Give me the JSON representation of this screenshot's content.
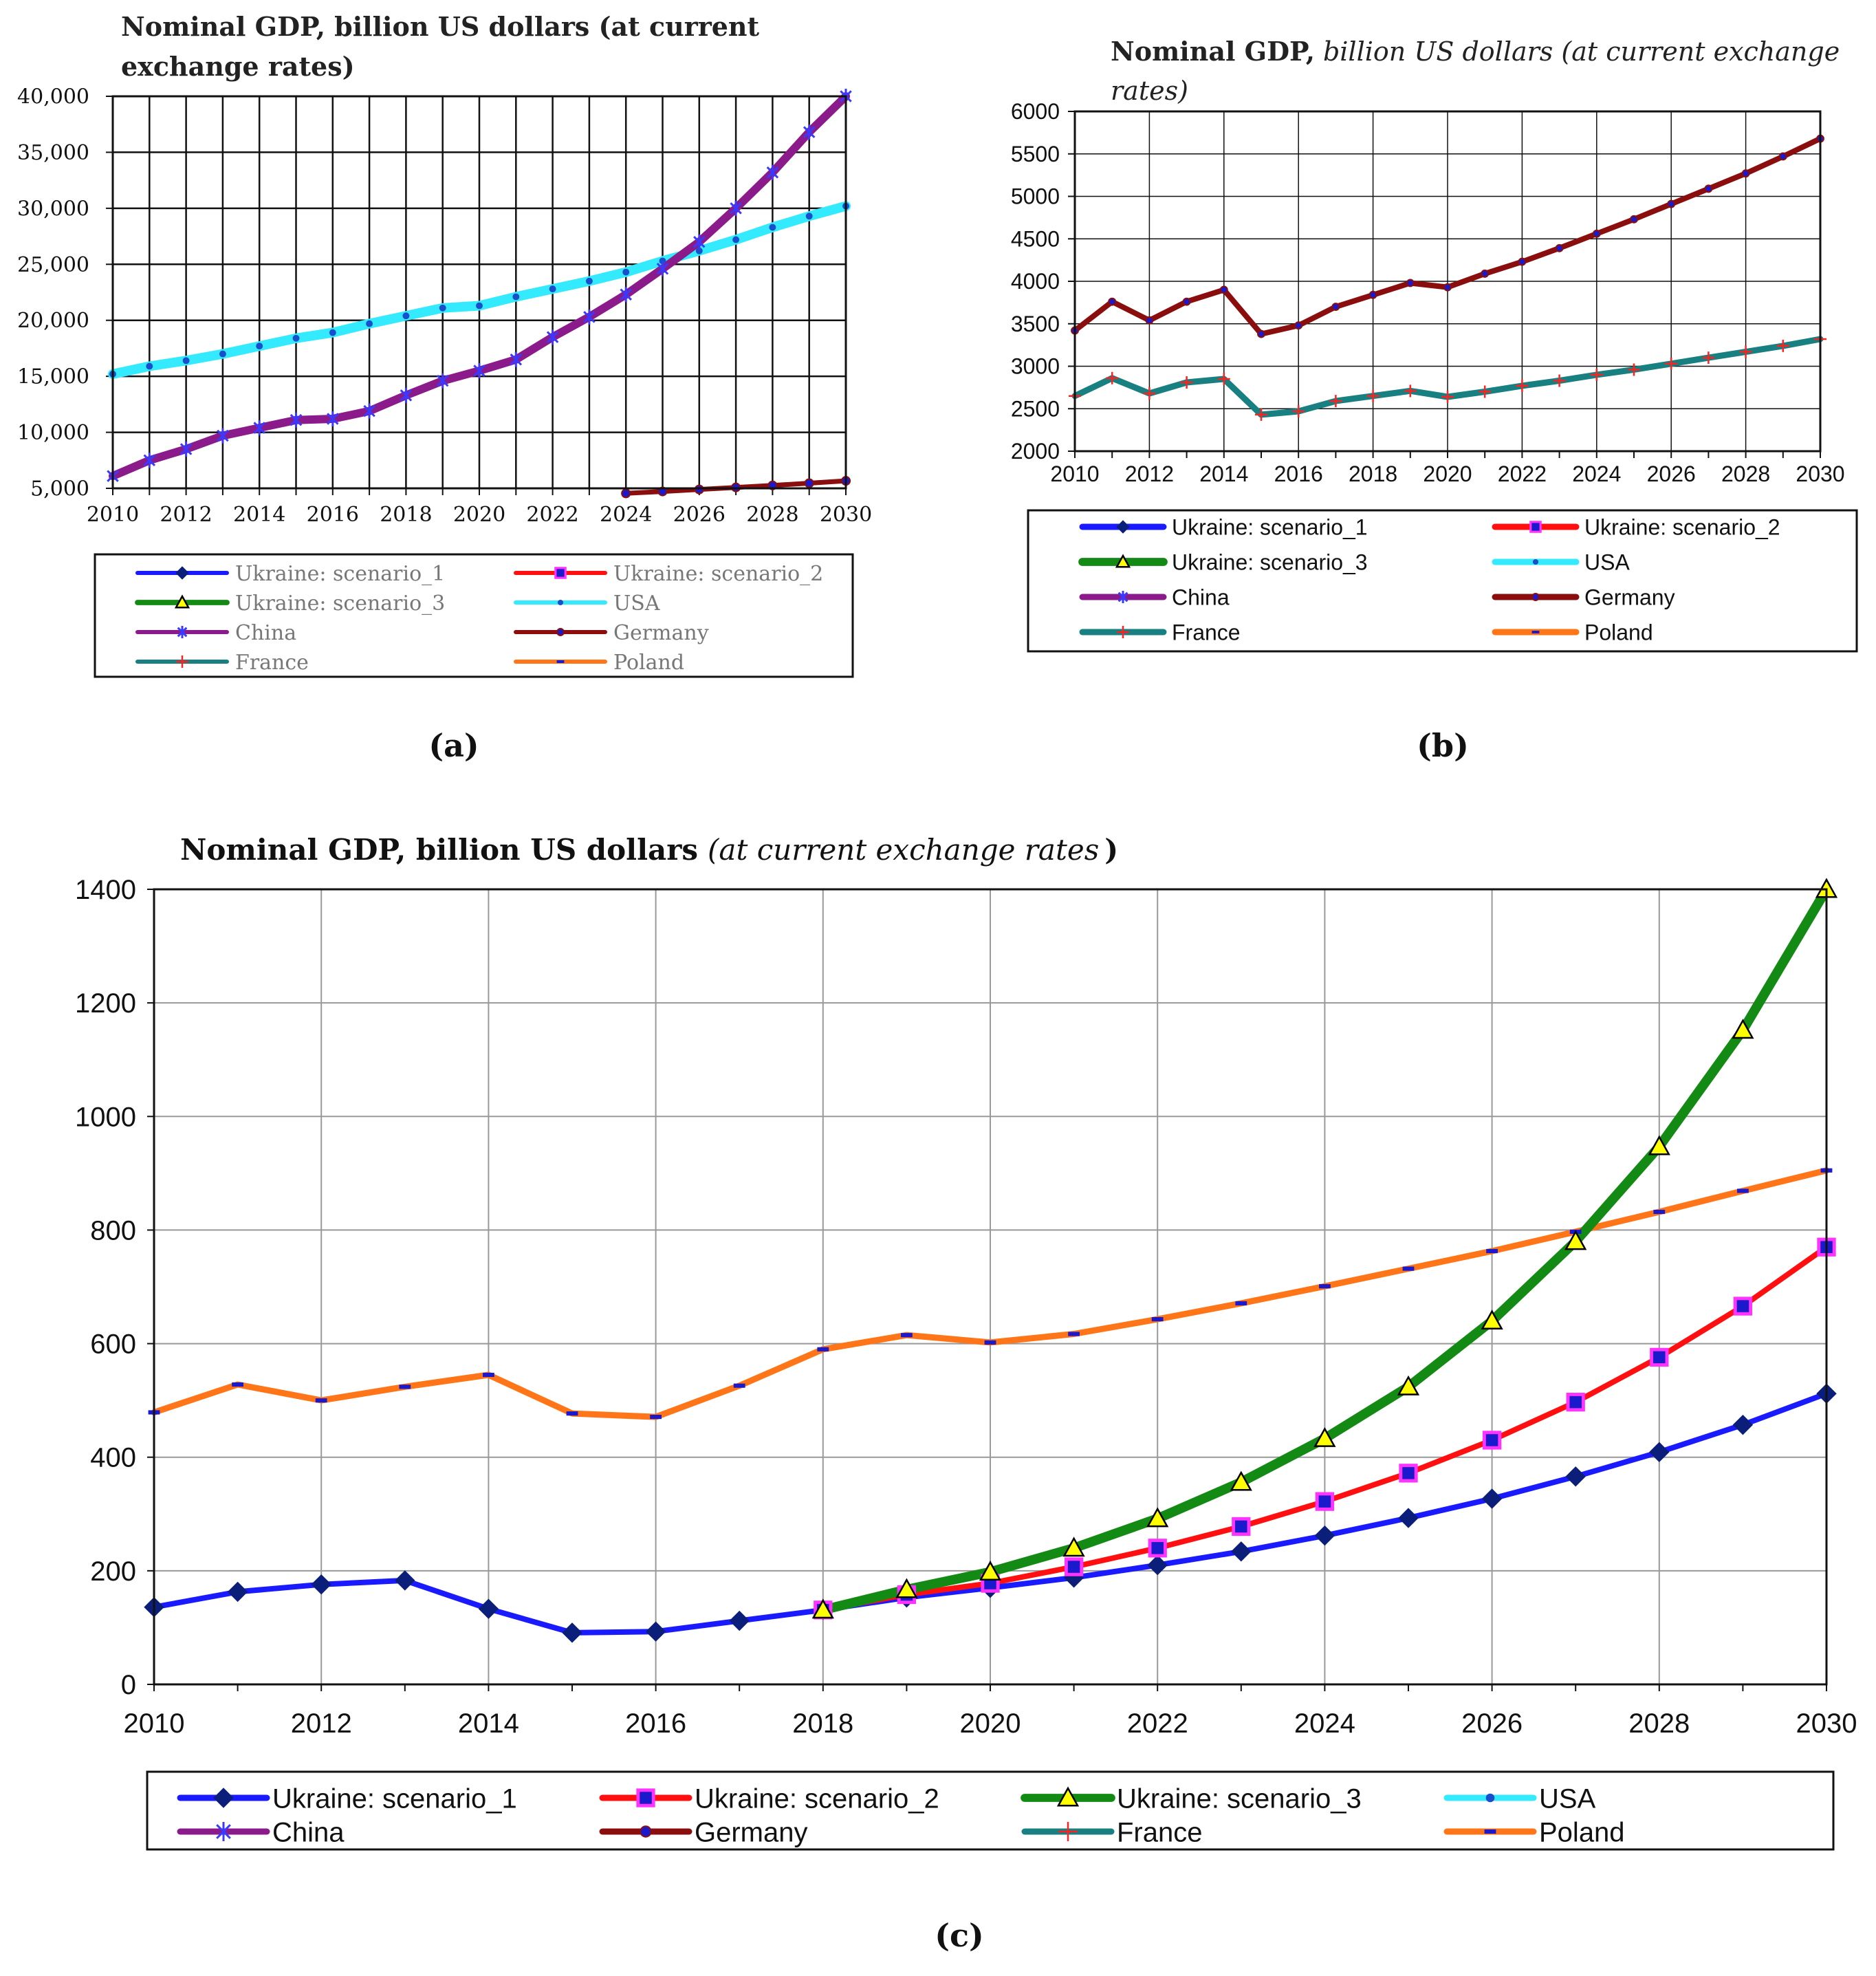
{
  "colors": {
    "ukraine_1": "#1a1aff",
    "ukraine_2": "#ff0f0f",
    "ukraine_3": "#138a13",
    "usa": "#33eaff",
    "china": "#8b1a8b",
    "germany": "#8b0e0e",
    "france": "#188080",
    "poland": "#ff7518"
  },
  "chart_data": [
    {
      "id": "a",
      "type": "line",
      "panel_label": "(a)",
      "title": "Nominal GDP, billion US dollars (at current exchange rates)",
      "title_lines": [
        "Nominal GDP, billion US dollars (at current",
        "exchange rates)"
      ],
      "ylim": [
        5000,
        40000
      ],
      "yticks": [
        5000,
        10000,
        15000,
        20000,
        25000,
        30000,
        35000,
        40000
      ],
      "ytick_labels": [
        "5,000",
        "10,000",
        "15,000",
        "20,000",
        "25,000",
        "30,000",
        "35,000",
        "40,000"
      ],
      "xlim": [
        2010,
        2030
      ],
      "xticks": [
        2010,
        2012,
        2014,
        2016,
        2018,
        2020,
        2022,
        2024,
        2026,
        2028,
        2030
      ],
      "xtick_labels": [
        "2010",
        "2012",
        "2014",
        "2016",
        "2018",
        "2020",
        "2022",
        "2024",
        "2026",
        "2028",
        "2030"
      ],
      "grid": true,
      "series": [
        {
          "name": "USA",
          "key": "usa",
          "x": [
            2010,
            2011,
            2012,
            2013,
            2014,
            2015,
            2016,
            2017,
            2018,
            2019,
            2020,
            2021,
            2022,
            2023,
            2024,
            2025,
            2026,
            2027,
            2028,
            2029,
            2030
          ],
          "values": [
            15200,
            15900,
            16400,
            17000,
            17700,
            18400,
            18900,
            19700,
            20400,
            21100,
            21300,
            22100,
            22800,
            23500,
            24300,
            25300,
            26200,
            27200,
            28300,
            29300,
            30200
          ]
        },
        {
          "name": "China",
          "key": "china",
          "x": [
            2010,
            2011,
            2012,
            2013,
            2014,
            2015,
            2016,
            2017,
            2018,
            2019,
            2020,
            2021,
            2022,
            2023,
            2024,
            2025,
            2026,
            2027,
            2028,
            2029,
            2030
          ],
          "values": [
            6100,
            7500,
            8500,
            9700,
            10400,
            11100,
            11200,
            11900,
            13300,
            14600,
            15500,
            16500,
            18500,
            20300,
            22300,
            24600,
            27000,
            30000,
            33200,
            36800,
            40000
          ]
        },
        {
          "name": "Germany",
          "key": "germany",
          "x": [
            2024,
            2025,
            2026,
            2027,
            2028,
            2029,
            2030
          ],
          "values": [
            4550,
            4720,
            4900,
            5080,
            5260,
            5460,
            5670
          ]
        }
      ],
      "legend": [
        "Ukraine: scenario_1",
        "Ukraine: scenario_2",
        "Ukraine: scenario_3",
        "USA",
        "China",
        "Germany",
        "France",
        "Poland"
      ]
    },
    {
      "id": "b",
      "type": "line",
      "panel_label": "(b)",
      "title": "Nominal GDP, billion US dollars (at current exchange rates)",
      "title_bold": "Nominal GDP,",
      "title_italic_1": "billion US dollars (at current exchange",
      "title_italic_2": "rates)",
      "ylim": [
        2000,
        6000
      ],
      "yticks": [
        2000,
        2500,
        3000,
        3500,
        4000,
        4500,
        5000,
        5500,
        6000
      ],
      "ytick_labels": [
        "2000",
        "2500",
        "3000",
        "3500",
        "4000",
        "4500",
        "5000",
        "5500",
        "6000"
      ],
      "xlim": [
        2010,
        2030
      ],
      "xticks": [
        2010,
        2012,
        2014,
        2016,
        2018,
        2020,
        2022,
        2024,
        2026,
        2028,
        2030
      ],
      "xtick_labels": [
        "2010",
        "2012",
        "2014",
        "2016",
        "2018",
        "2020",
        "2022",
        "2024",
        "2026",
        "2028",
        "2030"
      ],
      "grid": true,
      "series": [
        {
          "name": "Germany",
          "key": "germany",
          "x": [
            2010,
            2011,
            2012,
            2013,
            2014,
            2015,
            2016,
            2017,
            2018,
            2019,
            2020,
            2021,
            2022,
            2023,
            2024,
            2025,
            2026,
            2027,
            2028,
            2029,
            2030
          ],
          "values": [
            3420,
            3760,
            3540,
            3760,
            3900,
            3380,
            3480,
            3700,
            3840,
            3980,
            3930,
            4090,
            4230,
            4390,
            4560,
            4730,
            4910,
            5090,
            5270,
            5470,
            5680
          ]
        },
        {
          "name": "France",
          "key": "france",
          "x": [
            2010,
            2011,
            2012,
            2013,
            2014,
            2015,
            2016,
            2017,
            2018,
            2019,
            2020,
            2021,
            2022,
            2023,
            2024,
            2025,
            2026,
            2027,
            2028,
            2029,
            2030
          ],
          "values": [
            2650,
            2860,
            2680,
            2810,
            2850,
            2430,
            2470,
            2590,
            2650,
            2710,
            2640,
            2700,
            2770,
            2830,
            2900,
            2960,
            3030,
            3100,
            3170,
            3240,
            3320
          ]
        }
      ],
      "legend": [
        "Ukraine: scenario_1",
        "Ukraine: scenario_2",
        "Ukraine: scenario_3",
        "USA",
        "China",
        "Germany",
        "France",
        "Poland"
      ]
    },
    {
      "id": "c",
      "type": "line",
      "panel_label": "(c)",
      "title": "Nominal GDP, billion US dollars (at current exchange rates )",
      "title_bold": "Nominal GDP, billion US dollars",
      "title_italic": "(at current exchange rates",
      "title_close": ")",
      "ylim": [
        0,
        1400
      ],
      "yticks": [
        0,
        200,
        400,
        600,
        800,
        1000,
        1200,
        1400
      ],
      "ytick_labels": [
        "0",
        "200",
        "400",
        "600",
        "800",
        "1000",
        "1200",
        "1400"
      ],
      "xlim": [
        2010,
        2030
      ],
      "xticks": [
        2010,
        2012,
        2014,
        2016,
        2018,
        2020,
        2022,
        2024,
        2026,
        2028,
        2030
      ],
      "xtick_labels": [
        "2010",
        "2012",
        "2014",
        "2016",
        "2018",
        "2020",
        "2022",
        "2024",
        "2026",
        "2028",
        "2030"
      ],
      "grid": true,
      "series": [
        {
          "name": "Poland",
          "key": "poland",
          "x": [
            2010,
            2011,
            2012,
            2013,
            2014,
            2015,
            2016,
            2017,
            2018,
            2019,
            2020,
            2021,
            2022,
            2023,
            2024,
            2025,
            2026,
            2027,
            2028,
            2029,
            2030
          ],
          "values": [
            479,
            528,
            500,
            524,
            545,
            477,
            471,
            526,
            590,
            615,
            602,
            617,
            643,
            671,
            701,
            732,
            763,
            797,
            832,
            869,
            905
          ]
        },
        {
          "name": "Ukraine: scenario_1",
          "key": "ukraine_1",
          "x": [
            2010,
            2011,
            2012,
            2013,
            2014,
            2015,
            2016,
            2017,
            2018,
            2019,
            2020,
            2021,
            2022,
            2023,
            2024,
            2025,
            2026,
            2027,
            2028,
            2029,
            2030
          ],
          "values": [
            136,
            163,
            176,
            183,
            133,
            91,
            93,
            112,
            131,
            153,
            170,
            188,
            210,
            234,
            262,
            293,
            327,
            366,
            409,
            457,
            512
          ]
        },
        {
          "name": "Ukraine: scenario_2",
          "key": "ukraine_2",
          "x": [
            2018,
            2019,
            2020,
            2021,
            2022,
            2023,
            2024,
            2025,
            2026,
            2027,
            2028,
            2029,
            2030
          ],
          "values": [
            131,
            158,
            178,
            207,
            240,
            278,
            322,
            372,
            430,
            497,
            576,
            666,
            770
          ]
        },
        {
          "name": "Ukraine: scenario_3",
          "key": "ukraine_3",
          "x": [
            2018,
            2019,
            2020,
            2021,
            2022,
            2023,
            2024,
            2025,
            2026,
            2027,
            2028,
            2029,
            2030
          ],
          "values": [
            131,
            167,
            198,
            240,
            292,
            356,
            433,
            524,
            640,
            780,
            947,
            1152,
            1400
          ]
        }
      ],
      "legend": [
        "Ukraine: scenario_1",
        "Ukraine: scenario_2",
        "Ukraine: scenario_3",
        "USA",
        "China",
        "Germany",
        "France",
        "Poland"
      ]
    }
  ]
}
